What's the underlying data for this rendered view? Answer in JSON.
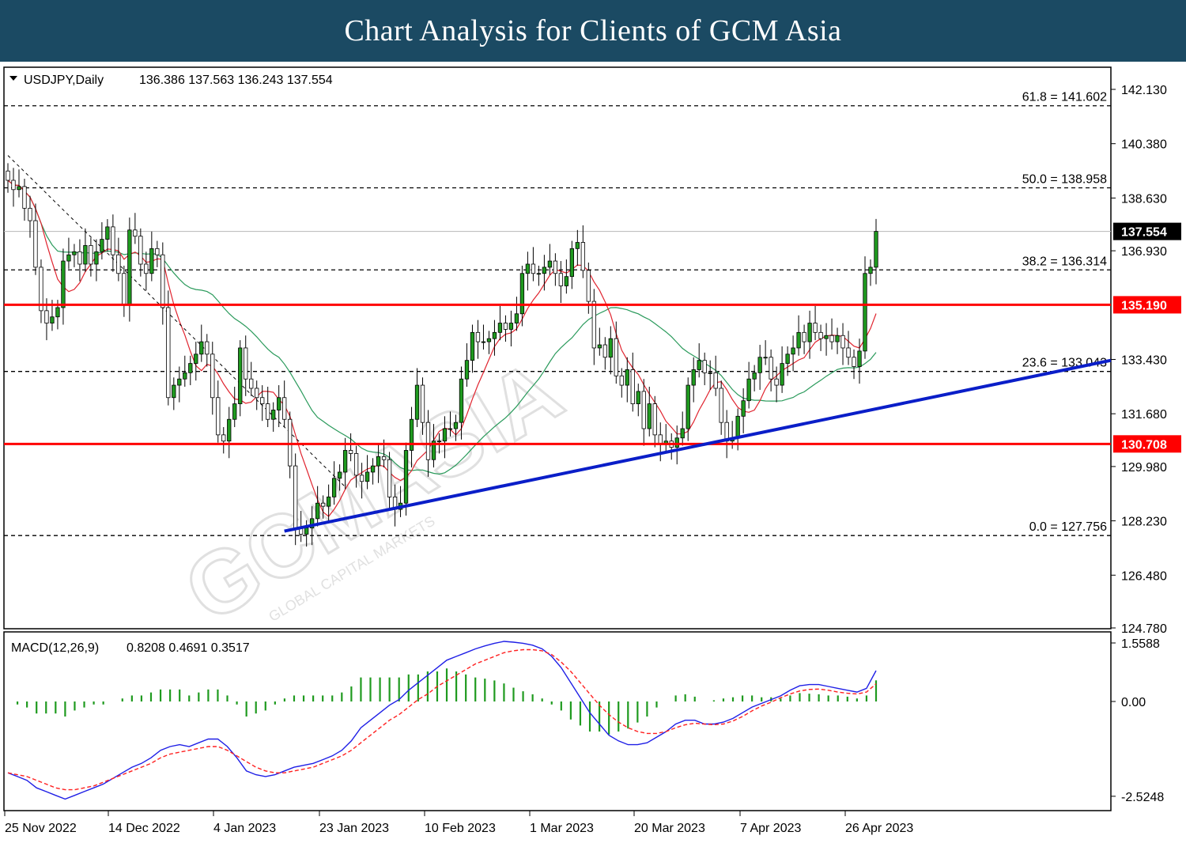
{
  "header": {
    "title": "Chart Analysis for Clients of GCM Asia"
  },
  "watermark": {
    "text": "GCMASIA",
    "subtext": "GLOBAL CAPITAL MARKETS"
  },
  "chart_data": [
    {
      "type": "candlestick",
      "title": "USDJPY,Daily",
      "ohlc_readout": "136.386 137.563 136.243 137.554",
      "ylim": [
        124.78,
        143.0
      ],
      "y_ticks": [
        "142.130",
        "140.380",
        "138.630",
        "136.930",
        "133.430",
        "131.680",
        "129.980",
        "128.230",
        "126.480",
        "124.780"
      ],
      "x_ticks": [
        "25 Nov 2022",
        "14 Dec 2022",
        "4 Jan 2023",
        "23 Jan 2023",
        "10 Feb 2023",
        "1 Mar 2023",
        "20 Mar 2023",
        "7 Apr 2023",
        "26 Apr 2023"
      ],
      "current_price": {
        "label": "137.554",
        "value": 137.554
      },
      "fibonacci_levels": [
        {
          "label": "61.8 = 141.602",
          "value": 141.602
        },
        {
          "label": "50.0 = 138.958",
          "value": 138.958
        },
        {
          "label": "38.2 = 136.314",
          "value": 136.314
        },
        {
          "label": "23.6 = 133.043",
          "value": 133.043
        },
        {
          "label": "0.0 = 127.756",
          "value": 127.756
        }
      ],
      "horizontal_levels": [
        {
          "label": "135.190",
          "value": 135.19,
          "color": "#ff0000"
        },
        {
          "label": "130.708",
          "value": 130.708,
          "color": "#ff0000"
        }
      ],
      "trendline": {
        "color": "#0a1ec8",
        "start_value": 127.9,
        "end_value": 133.4
      },
      "closes": [
        139.2,
        138.9,
        139.0,
        138.3,
        137.9,
        136.4,
        135.0,
        134.6,
        134.8,
        135.1,
        136.6,
        136.8,
        136.9,
        136.5,
        137.1,
        136.5,
        136.9,
        137.3,
        137.7,
        136.8,
        136.2,
        135.2,
        137.6,
        137.4,
        136.5,
        136.2,
        137.0,
        136.8,
        135.1,
        132.2,
        132.6,
        132.8,
        133.0,
        133.3,
        133.6,
        134.0,
        133.6,
        132.2,
        131.0,
        130.8,
        131.5,
        132.0,
        133.8,
        132.8,
        132.5,
        132.2,
        132.0,
        131.5,
        131.8,
        132.2,
        131.5,
        130.0,
        128.0,
        127.8,
        128.0,
        128.3,
        128.8,
        128.7,
        129.0,
        129.6,
        129.8,
        130.5,
        130.4,
        129.7,
        129.5,
        129.8,
        130.0,
        130.3,
        130.2,
        129.0,
        128.6,
        128.8,
        130.5,
        131.5,
        132.6,
        131.4,
        130.2,
        130.8,
        130.8,
        131.2,
        131.2,
        131.4,
        132.8,
        133.4,
        134.3,
        134.0,
        134.0,
        134.1,
        134.3,
        134.6,
        134.4,
        134.6,
        134.9,
        136.2,
        136.5,
        136.2,
        136.2,
        136.4,
        136.6,
        136.2,
        135.8,
        136.1,
        137.0,
        137.2,
        136.3,
        135.3,
        133.8,
        133.9,
        133.5,
        134.1,
        132.9,
        132.6,
        133.1,
        132.0,
        132.4,
        131.2,
        132.0,
        131.0,
        130.7,
        130.8,
        130.6,
        130.9,
        131.2,
        132.6,
        133.1,
        133.4,
        133.0,
        133.0,
        132.5,
        131.4,
        130.8,
        130.9,
        131.6,
        132.1,
        132.8,
        133.0,
        133.5,
        133.5,
        132.8,
        132.6,
        133.3,
        133.6,
        133.8,
        134.3,
        134.0,
        134.6,
        134.3,
        134.1,
        134.2,
        134.0,
        134.2,
        133.8,
        133.5,
        133.2,
        133.7,
        136.2,
        136.4,
        137.554
      ],
      "series": [
        {
          "name": "fast moving average",
          "color": "#e0242f"
        },
        {
          "name": "slow moving average",
          "color": "#2a9a5b"
        },
        {
          "name": "fibonacci guide",
          "color": "#000000"
        }
      ]
    },
    {
      "type": "line",
      "title": "MACD(12,26,9)",
      "readout": "0.8208 0.4691 0.3517",
      "ylim": [
        -2.8,
        1.75
      ],
      "y_ticks": [
        "1.5588",
        "0.00",
        "-2.5248"
      ],
      "macd": [
        -1.9,
        -2.0,
        -2.1,
        -2.3,
        -2.4,
        -2.5,
        -2.6,
        -2.5,
        -2.4,
        -2.3,
        -2.2,
        -2.05,
        -1.9,
        -1.75,
        -1.65,
        -1.5,
        -1.3,
        -1.2,
        -1.15,
        -1.2,
        -1.1,
        -1.0,
        -1.0,
        -1.2,
        -1.5,
        -1.85,
        -1.95,
        -2.0,
        -1.95,
        -1.85,
        -1.75,
        -1.7,
        -1.65,
        -1.55,
        -1.45,
        -1.3,
        -1.05,
        -0.7,
        -0.5,
        -0.3,
        -0.1,
        0.05,
        0.3,
        0.5,
        0.7,
        0.9,
        1.1,
        1.2,
        1.3,
        1.4,
        1.48,
        1.55,
        1.6,
        1.58,
        1.55,
        1.5,
        1.4,
        1.2,
        0.9,
        0.5,
        0.1,
        -0.3,
        -0.6,
        -0.9,
        -1.05,
        -1.15,
        -1.15,
        -1.1,
        -0.95,
        -0.8,
        -0.6,
        -0.5,
        -0.5,
        -0.6,
        -0.6,
        -0.55,
        -0.45,
        -0.3,
        -0.15,
        -0.05,
        0.05,
        0.15,
        0.3,
        0.42,
        0.45,
        0.45,
        0.4,
        0.35,
        0.3,
        0.25,
        0.35,
        0.8208
      ],
      "signal": [
        -1.9,
        -1.95,
        -2.0,
        -2.1,
        -2.2,
        -2.3,
        -2.35,
        -2.35,
        -2.3,
        -2.25,
        -2.15,
        -2.05,
        -1.95,
        -1.85,
        -1.75,
        -1.65,
        -1.5,
        -1.4,
        -1.35,
        -1.3,
        -1.25,
        -1.2,
        -1.2,
        -1.3,
        -1.45,
        -1.6,
        -1.75,
        -1.85,
        -1.9,
        -1.9,
        -1.85,
        -1.8,
        -1.75,
        -1.65,
        -1.55,
        -1.45,
        -1.3,
        -1.1,
        -0.9,
        -0.7,
        -0.5,
        -0.35,
        -0.15,
        0.05,
        0.2,
        0.4,
        0.55,
        0.7,
        0.85,
        1.0,
        1.1,
        1.2,
        1.3,
        1.35,
        1.38,
        1.38,
        1.35,
        1.25,
        1.05,
        0.8,
        0.5,
        0.2,
        -0.1,
        -0.35,
        -0.55,
        -0.7,
        -0.8,
        -0.85,
        -0.85,
        -0.8,
        -0.7,
        -0.62,
        -0.58,
        -0.6,
        -0.62,
        -0.6,
        -0.52,
        -0.4,
        -0.25,
        -0.12,
        -0.02,
        0.1,
        0.2,
        0.28,
        0.32,
        0.33,
        0.3,
        0.25,
        0.22,
        0.2,
        0.25,
        0.4691
      ],
      "histogram_color": "#1f9a1f",
      "macd_color": "#1f1fe6",
      "signal_color": "#ff2020"
    }
  ]
}
